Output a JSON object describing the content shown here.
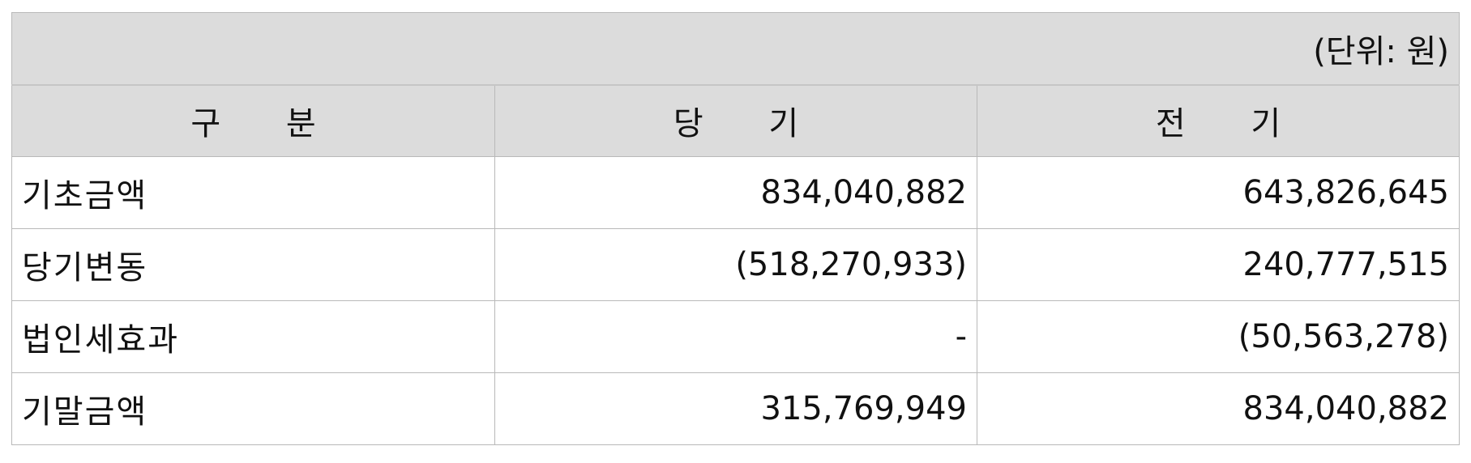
{
  "table": {
    "unit_note": "(단위: 원)",
    "headers": [
      "구 분",
      "당 기",
      "전 기"
    ],
    "rows": [
      {
        "label": "기초금액",
        "current": "834,040,882",
        "prior": "643,826,645"
      },
      {
        "label": "당기변동",
        "current": "(518,270,933)",
        "prior": "240,777,515"
      },
      {
        "label": "법인세효과",
        "current": "-",
        "prior": "(50,563,278)"
      },
      {
        "label": "기말금액",
        "current": "315,769,949",
        "prior": "834,040,882"
      }
    ]
  },
  "colors": {
    "header_background": "#dcdcdc",
    "border": "#b9b9b9",
    "text": "#111111"
  }
}
